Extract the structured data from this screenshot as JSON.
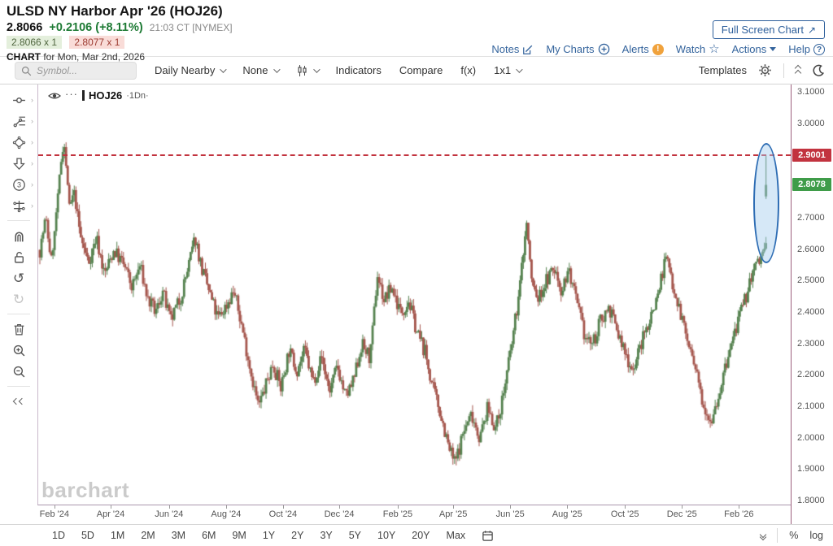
{
  "header": {
    "title": "ULSD NY Harbor Apr '26 (HOJ26)",
    "last_price": "2.8066",
    "change": "+0.2106 (+8.11%)",
    "quote_time": "21:03 CT [NYMEX]",
    "bid": "2.8066 x 1",
    "ask": "2.8077 x 1",
    "chart_for_label": "CHART",
    "chart_for_date": "for Mon, Mar 2nd, 2026",
    "full_screen_button": "Full Screen Chart",
    "links": {
      "notes": "Notes",
      "my_charts": "My Charts",
      "alerts": "Alerts",
      "watch": "Watch",
      "actions": "Actions",
      "help": "Help"
    }
  },
  "toolbar": {
    "symbol_placeholder": "Symbol...",
    "frequency": "Daily Nearby",
    "tools_none": "None",
    "indicators": "Indicators",
    "compare": "Compare",
    "fx": "f(x)",
    "grid": "1x1",
    "templates": "Templates"
  },
  "sidebar_tool_icons": [
    "cursor-line-tool",
    "trendlines-tool",
    "shapes-tool",
    "arrow-down-tool",
    "circle-3-tool",
    "measure-tool",
    "magnet-tool",
    "unlock-tool",
    "undo",
    "redo",
    "delete",
    "zoom-in",
    "zoom-out",
    "collapse-left"
  ],
  "legend": {
    "symbol": "HOJ26",
    "frequency": "·1Dn·"
  },
  "watermark": "barchart",
  "periods": [
    "1D",
    "5D",
    "1M",
    "2M",
    "3M",
    "6M",
    "9M",
    "1Y",
    "2Y",
    "3Y",
    "5Y",
    "10Y",
    "20Y",
    "Max"
  ],
  "scale_controls": {
    "percent": "%",
    "log": "log"
  },
  "chart_data": {
    "type": "candlestick",
    "title": "ULSD NY Harbor Apr '26 (HOJ26) daily nearby",
    "symbol": "HOJ26",
    "frequency": "1 Day",
    "y_range": [
      1.8,
      3.1
    ],
    "y_ticks": [
      {
        "label": "3.1000",
        "value": 3.1
      },
      {
        "label": "3.0000",
        "value": 3.0
      },
      {
        "label": "2.7000",
        "value": 2.7
      },
      {
        "label": "2.6000",
        "value": 2.6
      },
      {
        "label": "2.5000",
        "value": 2.5
      },
      {
        "label": "2.4000",
        "value": 2.4
      },
      {
        "label": "2.3000",
        "value": 2.3
      },
      {
        "label": "2.2000",
        "value": 2.2
      },
      {
        "label": "2.1000",
        "value": 2.1
      },
      {
        "label": "2.0000",
        "value": 2.0
      },
      {
        "label": "1.9000",
        "value": 1.9
      },
      {
        "label": "1.8000",
        "value": 1.8
      }
    ],
    "x_ticks": [
      {
        "label": "Feb '24",
        "t": 0.021
      },
      {
        "label": "Apr '24",
        "t": 0.098
      },
      {
        "label": "Jun '24",
        "t": 0.178
      },
      {
        "label": "Aug '24",
        "t": 0.256
      },
      {
        "label": "Oct '24",
        "t": 0.334
      },
      {
        "label": "Dec '24",
        "t": 0.411
      },
      {
        "label": "Feb '25",
        "t": 0.491
      },
      {
        "label": "Apr '25",
        "t": 0.567
      },
      {
        "label": "Jun '25",
        "t": 0.645
      },
      {
        "label": "Aug '25",
        "t": 0.723
      },
      {
        "label": "Oct '25",
        "t": 0.802
      },
      {
        "label": "Dec '25",
        "t": 0.88
      },
      {
        "label": "Feb '26",
        "t": 0.958
      }
    ],
    "horizontal_line": {
      "price": 2.9001,
      "label": "2.9001",
      "style": "dashed-red"
    },
    "last_price_marker": {
      "price": 2.8078,
      "label": "2.8078",
      "style": "green"
    },
    "ellipse_annotation": {
      "t_center": 0.994,
      "price_top": 2.925,
      "price_bottom": 2.545,
      "color": "#2e6db4"
    },
    "current_candle": {
      "open": 2.77,
      "high": 2.9,
      "low": 2.762,
      "close": 2.8066
    },
    "up_color": "#55824f",
    "down_color": "#a5564d",
    "trend_anchors": [
      [
        0,
        2.6
      ],
      [
        0.008,
        2.7
      ],
      [
        0.016,
        2.56
      ],
      [
        0.024,
        2.78
      ],
      [
        0.033,
        2.96
      ],
      [
        0.04,
        2.72
      ],
      [
        0.047,
        2.78
      ],
      [
        0.056,
        2.64
      ],
      [
        0.067,
        2.56
      ],
      [
        0.078,
        2.64
      ],
      [
        0.089,
        2.52
      ],
      [
        0.102,
        2.6
      ],
      [
        0.116,
        2.55
      ],
      [
        0.127,
        2.48
      ],
      [
        0.138,
        2.55
      ],
      [
        0.149,
        2.44
      ],
      [
        0.16,
        2.4
      ],
      [
        0.169,
        2.47
      ],
      [
        0.18,
        2.37
      ],
      [
        0.194,
        2.45
      ],
      [
        0.205,
        2.55
      ],
      [
        0.214,
        2.64
      ],
      [
        0.223,
        2.54
      ],
      [
        0.234,
        2.46
      ],
      [
        0.245,
        2.38
      ],
      [
        0.256,
        2.42
      ],
      [
        0.267,
        2.47
      ],
      [
        0.278,
        2.36
      ],
      [
        0.29,
        2.22
      ],
      [
        0.301,
        2.1
      ],
      [
        0.31,
        2.16
      ],
      [
        0.321,
        2.24
      ],
      [
        0.332,
        2.16
      ],
      [
        0.343,
        2.28
      ],
      [
        0.354,
        2.22
      ],
      [
        0.365,
        2.28
      ],
      [
        0.376,
        2.18
      ],
      [
        0.388,
        2.26
      ],
      [
        0.399,
        2.15
      ],
      [
        0.41,
        2.23
      ],
      [
        0.421,
        2.13
      ],
      [
        0.432,
        2.18
      ],
      [
        0.443,
        2.3
      ],
      [
        0.454,
        2.26
      ],
      [
        0.465,
        2.52
      ],
      [
        0.474,
        2.44
      ],
      [
        0.485,
        2.48
      ],
      [
        0.497,
        2.4
      ],
      [
        0.508,
        2.44
      ],
      [
        0.519,
        2.34
      ],
      [
        0.53,
        2.28
      ],
      [
        0.541,
        2.16
      ],
      [
        0.552,
        2.08
      ],
      [
        0.563,
        1.97
      ],
      [
        0.572,
        1.92
      ],
      [
        0.583,
        2.02
      ],
      [
        0.595,
        2.08
      ],
      [
        0.606,
        2.0
      ],
      [
        0.617,
        2.1
      ],
      [
        0.628,
        2.03
      ],
      [
        0.639,
        2.15
      ],
      [
        0.65,
        2.3
      ],
      [
        0.661,
        2.48
      ],
      [
        0.67,
        2.7
      ],
      [
        0.677,
        2.5
      ],
      [
        0.686,
        2.44
      ],
      [
        0.697,
        2.5
      ],
      [
        0.708,
        2.54
      ],
      [
        0.719,
        2.47
      ],
      [
        0.728,
        2.54
      ],
      [
        0.739,
        2.43
      ],
      [
        0.751,
        2.32
      ],
      [
        0.762,
        2.3
      ],
      [
        0.773,
        2.38
      ],
      [
        0.784,
        2.42
      ],
      [
        0.795,
        2.34
      ],
      [
        0.806,
        2.27
      ],
      [
        0.817,
        2.22
      ],
      [
        0.828,
        2.3
      ],
      [
        0.84,
        2.38
      ],
      [
        0.851,
        2.46
      ],
      [
        0.862,
        2.58
      ],
      [
        0.869,
        2.52
      ],
      [
        0.88,
        2.42
      ],
      [
        0.891,
        2.32
      ],
      [
        0.902,
        2.22
      ],
      [
        0.913,
        2.12
      ],
      [
        0.924,
        2.06
      ],
      [
        0.935,
        2.14
      ],
      [
        0.946,
        2.24
      ],
      [
        0.957,
        2.34
      ],
      [
        0.969,
        2.42
      ],
      [
        0.98,
        2.52
      ],
      [
        1.0,
        2.61
      ]
    ]
  }
}
